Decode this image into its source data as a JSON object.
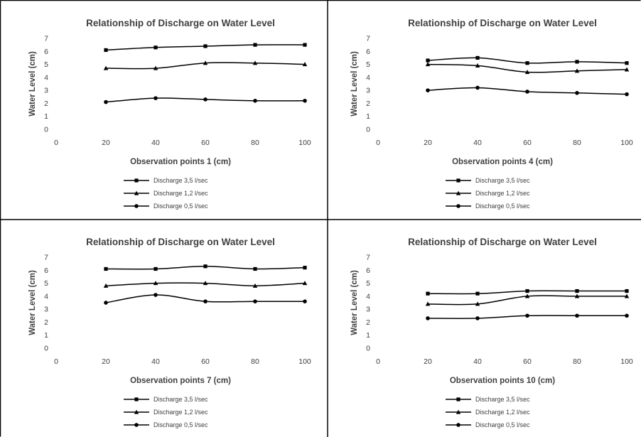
{
  "chart_data": [
    {
      "type": "line",
      "title": "Relationship of Discharge on Water Level",
      "xlabel": "Observation points 1 (cm)",
      "ylabel": "Water Level (cm)",
      "xlim": [
        0,
        100
      ],
      "ylim": [
        0,
        7
      ],
      "xticks": [
        "0",
        "20",
        "40",
        "60",
        "80",
        "100"
      ],
      "yticks": [
        "0",
        "1",
        "2",
        "3",
        "4",
        "5",
        "6",
        "7"
      ],
      "x": [
        20,
        40,
        60,
        80,
        100
      ],
      "series": [
        {
          "name": "Discharge  3,5 l/sec",
          "marker": "square",
          "values": [
            6.1,
            6.3,
            6.4,
            6.5,
            6.5
          ]
        },
        {
          "name": "Discharge  1,2 l/sec",
          "marker": "triangle",
          "values": [
            4.7,
            4.7,
            5.1,
            5.1,
            5.0
          ]
        },
        {
          "name": "Discharge 0,5 l/sec",
          "marker": "circle",
          "values": [
            2.1,
            2.4,
            2.3,
            2.2,
            2.2
          ]
        }
      ],
      "legend": "bottom",
      "grid": false
    },
    {
      "type": "line",
      "title": "Relationship of Discharge on Water Level",
      "xlabel": "Observation points 4 (cm)",
      "ylabel": "Water Level (cm)",
      "xlim": [
        0,
        100
      ],
      "ylim": [
        0,
        7
      ],
      "xticks": [
        "0",
        "20",
        "40",
        "60",
        "80",
        "100"
      ],
      "yticks": [
        "0",
        "1",
        "2",
        "3",
        "4",
        "5",
        "6",
        "7"
      ],
      "x": [
        20,
        40,
        60,
        80,
        100
      ],
      "series": [
        {
          "name": "Discharge  3,5 l/sec",
          "marker": "square",
          "values": [
            5.3,
            5.5,
            5.1,
            5.2,
            5.1
          ]
        },
        {
          "name": "Discharge  1,2 l/sec",
          "marker": "triangle",
          "values": [
            5.0,
            4.9,
            4.4,
            4.5,
            4.6
          ]
        },
        {
          "name": "Discharge 0,5 l/sec",
          "marker": "circle",
          "values": [
            3.0,
            3.2,
            2.9,
            2.8,
            2.7
          ]
        }
      ],
      "legend": "bottom",
      "grid": false
    },
    {
      "type": "line",
      "title": "Relationship of Discharge on Water Level",
      "xlabel": "Observation points 7 (cm)",
      "ylabel": "Water Level (cm)",
      "xlim": [
        0,
        100
      ],
      "ylim": [
        0,
        7
      ],
      "xticks": [
        "0",
        "20",
        "40",
        "60",
        "80",
        "100"
      ],
      "yticks": [
        "0",
        "1",
        "2",
        "3",
        "4",
        "5",
        "6",
        "7"
      ],
      "x": [
        20,
        40,
        60,
        80,
        100
      ],
      "series": [
        {
          "name": "Discharge  3,5 l/sec",
          "marker": "square",
          "values": [
            6.1,
            6.1,
            6.3,
            6.1,
            6.2
          ]
        },
        {
          "name": "Discharge  1,2 l/sec",
          "marker": "triangle",
          "values": [
            4.8,
            5.0,
            5.0,
            4.8,
            5.0
          ]
        },
        {
          "name": "Discharge 0,5 l/sec",
          "marker": "circle",
          "values": [
            3.5,
            4.1,
            3.6,
            3.6,
            3.6
          ]
        }
      ],
      "legend": "bottom",
      "grid": false
    },
    {
      "type": "line",
      "title": "Relationship of Discharge on Water Level",
      "xlabel": "Observation points 10 (cm)",
      "ylabel": "Water Level (cm)",
      "xlim": [
        0,
        100
      ],
      "ylim": [
        0,
        7
      ],
      "xticks": [
        "0",
        "20",
        "40",
        "60",
        "80",
        "100"
      ],
      "yticks": [
        "0",
        "1",
        "2",
        "3",
        "4",
        "5",
        "6",
        "7"
      ],
      "x": [
        20,
        40,
        60,
        80,
        100
      ],
      "series": [
        {
          "name": "Discharge  3,5 l/sec",
          "marker": "square",
          "values": [
            4.2,
            4.2,
            4.4,
            4.4,
            4.4
          ]
        },
        {
          "name": "Discharge  1,2 l/sec",
          "marker": "triangle",
          "values": [
            3.4,
            3.4,
            4.0,
            4.0,
            4.0
          ]
        },
        {
          "name": "Discharge 0,5 l/sec",
          "marker": "circle",
          "values": [
            2.3,
            2.3,
            2.5,
            2.5,
            2.5
          ]
        }
      ],
      "legend": "bottom",
      "grid": false
    }
  ],
  "style": {
    "line_color": "#000000",
    "text_color": "#404040",
    "border_color": "#000000",
    "background": "#ffffff"
  }
}
